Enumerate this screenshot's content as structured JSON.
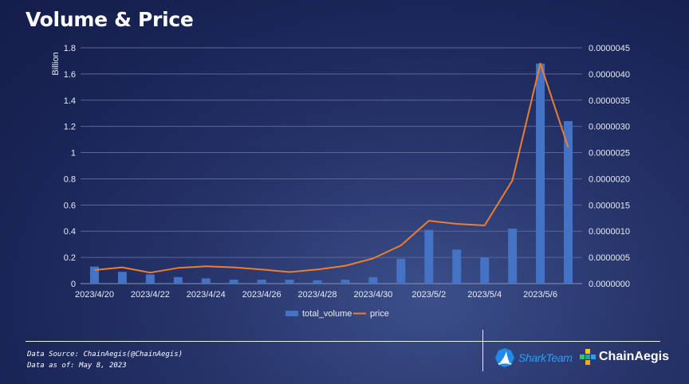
{
  "header": {
    "title": "Volume & Price"
  },
  "chart_data": {
    "type": "bar",
    "title": "Volume & Price",
    "ylabel": "Billion",
    "ylim": [
      0,
      1.8
    ],
    "y2lim": [
      0,
      4.5e-06
    ],
    "y_ticks": [
      "0",
      "0.2",
      "0.4",
      "0.6",
      "0.8",
      "1",
      "1.2",
      "1.4",
      "1.6",
      "1.8"
    ],
    "y2_ticks": [
      "0.0000000",
      "0.0000005",
      "0.0000010",
      "0.0000015",
      "0.0000020",
      "0.0000025",
      "0.0000030",
      "0.0000035",
      "0.0000040",
      "0.0000045"
    ],
    "categories": [
      "2023/4/20",
      "2023/4/21",
      "2023/4/22",
      "2023/4/23",
      "2023/4/24",
      "2023/4/25",
      "2023/4/26",
      "2023/4/27",
      "2023/4/28",
      "2023/4/29",
      "2023/4/30",
      "2023/5/1",
      "2023/5/2",
      "2023/5/3",
      "2023/5/4",
      "2023/5/5",
      "2023/5/6",
      "2023/5/7"
    ],
    "x_tick_labels": [
      "2023/4/20",
      "2023/4/22",
      "2023/4/24",
      "2023/4/26",
      "2023/4/28",
      "2023/4/30",
      "2023/5/2",
      "2023/5/4",
      "2023/5/6"
    ],
    "grid": true,
    "legend_position": "bottom",
    "series": [
      {
        "name": "total_volume",
        "type": "bar",
        "axis": "left",
        "color": "#4472c4",
        "values": [
          0.13,
          0.09,
          0.07,
          0.05,
          0.04,
          0.03,
          0.03,
          0.03,
          0.025,
          0.03,
          0.05,
          0.19,
          0.41,
          0.26,
          0.2,
          0.42,
          1.68,
          1.24
        ]
      },
      {
        "name": "price",
        "type": "line",
        "axis": "right",
        "color": "#ed7d31",
        "values": [
          2.6e-07,
          3.1e-07,
          2.1e-07,
          3e-07,
          3.3e-07,
          3.1e-07,
          2.7e-07,
          2.2e-07,
          2.7e-07,
          3.4e-07,
          4.8e-07,
          7.3e-07,
          1.2e-06,
          1.14e-06,
          1.11e-06,
          1.97e-06,
          4.2e-06,
          2.6e-06
        ]
      }
    ]
  },
  "footer": {
    "source": "Data Source: ChainAegis(@ChainAegis)",
    "date": "Data as of: May 8, 2023",
    "logo_shark": "SharkTeam",
    "logo_chain": "ChainAegis"
  }
}
